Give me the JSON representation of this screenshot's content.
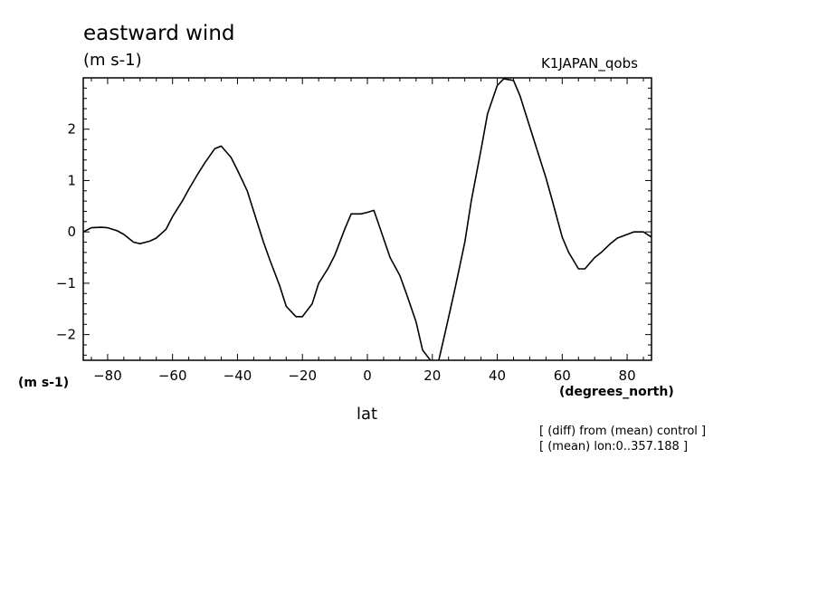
{
  "header": {
    "title": "eastward wind",
    "units": "(m s-1)",
    "run": "K1JAPAN_qobs"
  },
  "axes": {
    "y_units": "(m s-1)",
    "x_units": "(degrees_north)",
    "x_label": "lat"
  },
  "notes": {
    "line1": "[ (diff) from (mean) control ]",
    "line2": "[ (mean) lon:0..357.188 ]"
  },
  "chart_data": {
    "type": "line",
    "title": "eastward wind",
    "ylabel": "(m s-1)",
    "xlabel": "lat",
    "xlim": [
      -87.5,
      87.5
    ],
    "ylim": [
      -2.5,
      3.0
    ],
    "x_ticks": [
      -80,
      -60,
      -40,
      -20,
      0,
      20,
      40,
      60,
      80
    ],
    "x_tick_labels": [
      "-80",
      "-60",
      "-40",
      "-20",
      "0",
      "20",
      "40",
      "60",
      "80"
    ],
    "y_ticks": [
      -2,
      -1,
      0,
      1,
      2
    ],
    "y_tick_labels": [
      "-2",
      "-1",
      "0",
      "1",
      "2"
    ],
    "grid": false,
    "series": [
      {
        "color": "#000000",
        "x": [
          -87.5,
          -85,
          -82,
          -80,
          -77,
          -75,
          -72,
          -70,
          -67,
          -65,
          -62,
          -60,
          -57,
          -55,
          -52,
          -50,
          -47,
          -45,
          -42,
          -40,
          -37,
          -35,
          -32,
          -30,
          -27,
          -25,
          -22,
          -20,
          -17,
          -15,
          -12,
          -10,
          -7,
          -5,
          -2,
          0,
          2,
          4,
          7,
          10,
          12,
          15,
          17,
          20,
          22,
          24,
          27,
          30,
          32,
          35,
          37,
          40,
          42,
          45,
          47,
          49,
          52,
          55,
          57,
          60,
          62,
          65,
          67,
          70,
          72,
          75,
          77,
          80,
          82,
          85,
          87.5
        ],
        "values": [
          0.0,
          0.08,
          0.09,
          0.08,
          0.02,
          -0.05,
          -0.2,
          -0.23,
          -0.18,
          -0.12,
          0.05,
          0.3,
          0.6,
          0.83,
          1.15,
          1.35,
          1.62,
          1.67,
          1.45,
          1.2,
          0.8,
          0.4,
          -0.2,
          -0.55,
          -1.05,
          -1.45,
          -1.65,
          -1.65,
          -1.4,
          -1.0,
          -0.7,
          -0.45,
          0.05,
          0.35,
          0.35,
          0.38,
          0.42,
          0.05,
          -0.5,
          -0.85,
          -1.2,
          -1.75,
          -2.3,
          -2.55,
          -2.5,
          -1.95,
          -1.1,
          -0.2,
          0.6,
          1.6,
          2.3,
          2.85,
          2.98,
          2.95,
          2.65,
          2.25,
          1.65,
          1.05,
          0.6,
          -0.1,
          -0.4,
          -0.72,
          -0.72,
          -0.5,
          -0.4,
          -0.22,
          -0.12,
          -0.05,
          0.0,
          0.0,
          -0.1
        ]
      }
    ]
  }
}
